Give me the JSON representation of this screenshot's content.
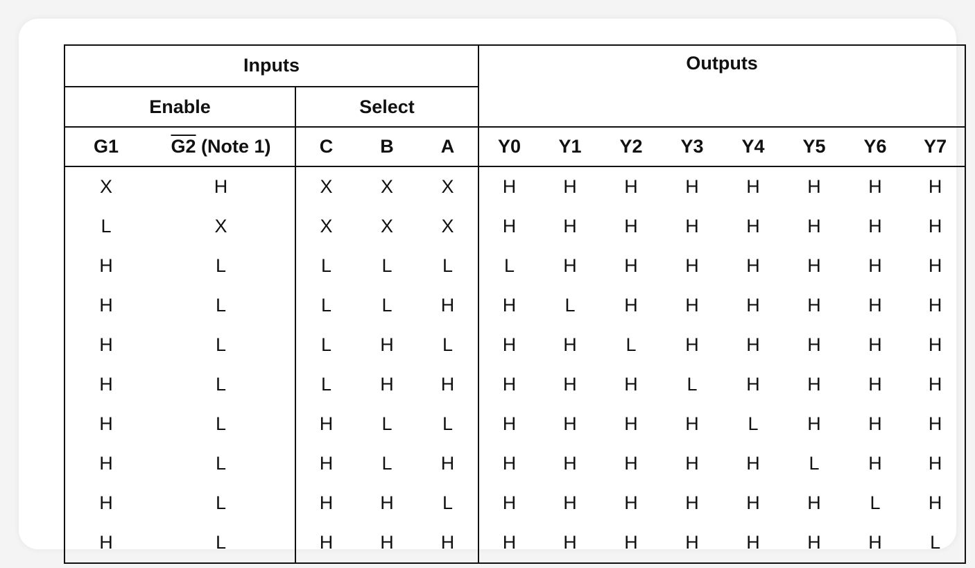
{
  "header": {
    "inputs": "Inputs",
    "outputs": "Outputs",
    "enable": "Enable",
    "select": "Select",
    "col_g1": "G1",
    "col_g2": "G2",
    "col_g2_note": " (Note 1)",
    "col_c": "C",
    "col_b": "B",
    "col_a": "A",
    "col_y0": "Y0",
    "col_y1": "Y1",
    "col_y2": "Y2",
    "col_y3": "Y3",
    "col_y4": "Y4",
    "col_y5": "Y5",
    "col_y6": "Y6",
    "col_y7": "Y7"
  },
  "rows": [
    [
      "X",
      "H",
      "X",
      "X",
      "X",
      "H",
      "H",
      "H",
      "H",
      "H",
      "H",
      "H",
      "H"
    ],
    [
      "L",
      "X",
      "X",
      "X",
      "X",
      "H",
      "H",
      "H",
      "H",
      "H",
      "H",
      "H",
      "H"
    ],
    [
      "H",
      "L",
      "L",
      "L",
      "L",
      "L",
      "H",
      "H",
      "H",
      "H",
      "H",
      "H",
      "H"
    ],
    [
      "H",
      "L",
      "L",
      "L",
      "H",
      "H",
      "L",
      "H",
      "H",
      "H",
      "H",
      "H",
      "H"
    ],
    [
      "H",
      "L",
      "L",
      "H",
      "L",
      "H",
      "H",
      "L",
      "H",
      "H",
      "H",
      "H",
      "H"
    ],
    [
      "H",
      "L",
      "L",
      "H",
      "H",
      "H",
      "H",
      "H",
      "L",
      "H",
      "H",
      "H",
      "H"
    ],
    [
      "H",
      "L",
      "H",
      "L",
      "L",
      "H",
      "H",
      "H",
      "H",
      "L",
      "H",
      "H",
      "H"
    ],
    [
      "H",
      "L",
      "H",
      "L",
      "H",
      "H",
      "H",
      "H",
      "H",
      "H",
      "L",
      "H",
      "H"
    ],
    [
      "H",
      "L",
      "H",
      "H",
      "L",
      "H",
      "H",
      "H",
      "H",
      "H",
      "H",
      "L",
      "H"
    ],
    [
      "H",
      "L",
      "H",
      "H",
      "H",
      "H",
      "H",
      "H",
      "H",
      "H",
      "H",
      "H",
      "L"
    ]
  ]
}
